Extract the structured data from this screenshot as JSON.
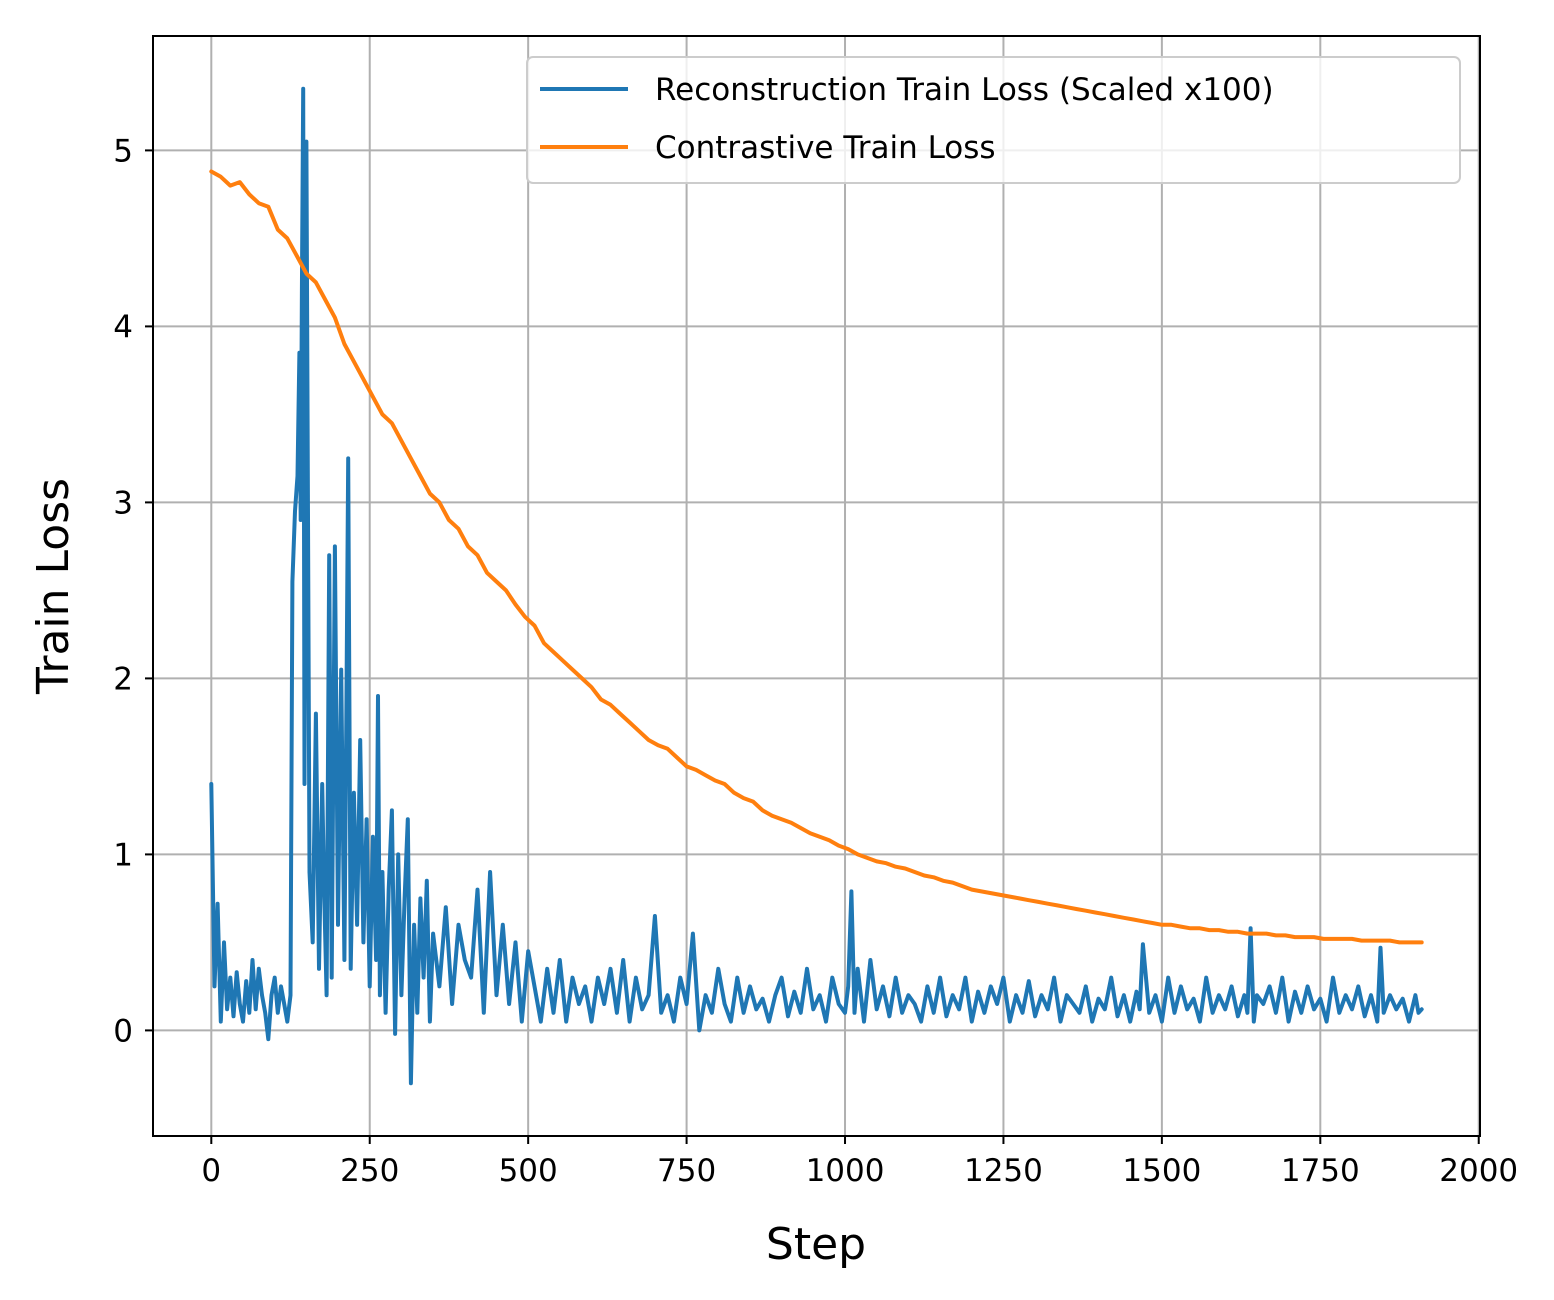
{
  "chart_data": {
    "type": "line",
    "title": "",
    "xlabel": "Step",
    "ylabel": "Train Loss",
    "xlim": [
      -92,
      2002
    ],
    "ylim": [
      -0.6,
      5.65
    ],
    "x_ticks": [
      0,
      250,
      500,
      750,
      1000,
      1250,
      1500,
      1750,
      2000
    ],
    "x_tick_labels": [
      "0",
      "250",
      "500",
      "750",
      "1000",
      "1250",
      "1500",
      "1750",
      "2000"
    ],
    "y_ticks": [
      0,
      1,
      2,
      3,
      4,
      5
    ],
    "y_tick_labels": [
      "0",
      "1",
      "2",
      "3",
      "4",
      "5"
    ],
    "grid": true,
    "legend_position": "top-right",
    "series": [
      {
        "name": "Reconstruction Train Loss (Scaled x100)",
        "color": "#1f77b4",
        "x": [
          0,
          5,
          10,
          15,
          20,
          25,
          30,
          35,
          40,
          45,
          50,
          55,
          60,
          65,
          70,
          75,
          80,
          85,
          90,
          95,
          100,
          105,
          110,
          115,
          120,
          125,
          128,
          132,
          136,
          139,
          141,
          143,
          145,
          147,
          150,
          155,
          160,
          165,
          170,
          175,
          178,
          182,
          186,
          190,
          195,
          200,
          205,
          210,
          213,
          216,
          220,
          225,
          230,
          235,
          240,
          245,
          250,
          255,
          260,
          263,
          266,
          270,
          275,
          280,
          285,
          290,
          295,
          300,
          305,
          310,
          315,
          320,
          325,
          330,
          335,
          340,
          345,
          350,
          360,
          370,
          380,
          390,
          400,
          410,
          420,
          430,
          440,
          450,
          460,
          470,
          480,
          490,
          500,
          510,
          520,
          530,
          540,
          550,
          560,
          570,
          580,
          590,
          600,
          610,
          620,
          630,
          640,
          650,
          660,
          670,
          680,
          690,
          700,
          710,
          720,
          730,
          740,
          750,
          760,
          770,
          780,
          790,
          800,
          810,
          820,
          830,
          840,
          850,
          860,
          870,
          880,
          890,
          900,
          910,
          920,
          930,
          940,
          950,
          960,
          970,
          980,
          990,
          1000,
          1005,
          1010,
          1015,
          1020,
          1030,
          1040,
          1050,
          1060,
          1070,
          1080,
          1090,
          1100,
          1110,
          1120,
          1130,
          1140,
          1150,
          1160,
          1170,
          1180,
          1190,
          1200,
          1210,
          1220,
          1230,
          1240,
          1250,
          1260,
          1270,
          1280,
          1290,
          1300,
          1310,
          1320,
          1330,
          1340,
          1350,
          1360,
          1370,
          1380,
          1390,
          1400,
          1410,
          1420,
          1430,
          1440,
          1450,
          1460,
          1465,
          1470,
          1480,
          1490,
          1500,
          1510,
          1520,
          1530,
          1540,
          1550,
          1560,
          1570,
          1580,
          1590,
          1600,
          1610,
          1620,
          1630,
          1635,
          1640,
          1645,
          1650,
          1660,
          1670,
          1680,
          1690,
          1700,
          1710,
          1720,
          1730,
          1740,
          1750,
          1760,
          1770,
          1780,
          1790,
          1800,
          1810,
          1820,
          1830,
          1840,
          1845,
          1850,
          1860,
          1870,
          1880,
          1890,
          1900,
          1905,
          1910
        ],
        "values": [
          1.4,
          0.25,
          0.72,
          0.05,
          0.5,
          0.12,
          0.3,
          0.08,
          0.33,
          0.15,
          0.05,
          0.28,
          0.1,
          0.4,
          0.12,
          0.35,
          0.2,
          0.1,
          -0.05,
          0.2,
          0.3,
          0.1,
          0.25,
          0.15,
          0.05,
          0.2,
          2.55,
          2.95,
          3.15,
          3.85,
          2.9,
          4.2,
          5.35,
          1.4,
          5.05,
          0.9,
          0.5,
          1.8,
          0.35,
          1.4,
          0.8,
          0.2,
          2.7,
          0.3,
          2.75,
          0.6,
          2.05,
          0.4,
          1.75,
          3.25,
          0.35,
          1.35,
          0.6,
          1.65,
          0.5,
          1.2,
          0.25,
          1.1,
          0.4,
          1.9,
          0.2,
          0.9,
          0.1,
          0.8,
          1.25,
          -0.02,
          1.0,
          0.2,
          0.75,
          1.2,
          -0.3,
          0.6,
          0.1,
          0.75,
          0.3,
          0.85,
          0.05,
          0.55,
          0.25,
          0.7,
          0.15,
          0.6,
          0.4,
          0.3,
          0.8,
          0.1,
          0.9,
          0.2,
          0.6,
          0.15,
          0.5,
          0.05,
          0.45,
          0.25,
          0.05,
          0.35,
          0.1,
          0.4,
          0.05,
          0.3,
          0.15,
          0.25,
          0.05,
          0.3,
          0.15,
          0.35,
          0.1,
          0.4,
          0.05,
          0.3,
          0.12,
          0.2,
          0.65,
          0.1,
          0.2,
          0.05,
          0.3,
          0.15,
          0.55,
          0.0,
          0.2,
          0.1,
          0.35,
          0.15,
          0.05,
          0.3,
          0.1,
          0.25,
          0.12,
          0.18,
          0.05,
          0.2,
          0.3,
          0.08,
          0.22,
          0.1,
          0.35,
          0.12,
          0.2,
          0.05,
          0.3,
          0.15,
          0.1,
          0.25,
          0.79,
          0.1,
          0.35,
          0.05,
          0.4,
          0.12,
          0.25,
          0.08,
          0.3,
          0.1,
          0.2,
          0.15,
          0.05,
          0.25,
          0.1,
          0.3,
          0.08,
          0.2,
          0.12,
          0.3,
          0.05,
          0.22,
          0.1,
          0.25,
          0.15,
          0.3,
          0.05,
          0.2,
          0.1,
          0.28,
          0.08,
          0.2,
          0.12,
          0.3,
          0.05,
          0.2,
          0.15,
          0.1,
          0.25,
          0.05,
          0.18,
          0.12,
          0.3,
          0.08,
          0.2,
          0.05,
          0.22,
          0.12,
          0.49,
          0.1,
          0.2,
          0.05,
          0.3,
          0.1,
          0.25,
          0.12,
          0.18,
          0.05,
          0.3,
          0.1,
          0.2,
          0.12,
          0.25,
          0.08,
          0.2,
          0.1,
          0.58,
          0.05,
          0.2,
          0.15,
          0.25,
          0.1,
          0.3,
          0.05,
          0.22,
          0.1,
          0.25,
          0.12,
          0.18,
          0.05,
          0.3,
          0.1,
          0.2,
          0.12,
          0.25,
          0.08,
          0.2,
          0.05,
          0.47,
          0.1,
          0.2,
          0.12,
          0.18,
          0.05,
          0.2,
          0.1,
          0.12
        ]
      },
      {
        "name": "Contrastive Train Loss",
        "color": "#ff7f0e",
        "x": [
          0,
          15,
          30,
          45,
          60,
          75,
          90,
          105,
          120,
          135,
          150,
          165,
          180,
          195,
          210,
          225,
          240,
          255,
          270,
          285,
          300,
          315,
          330,
          345,
          360,
          375,
          390,
          405,
          420,
          435,
          450,
          465,
          480,
          495,
          510,
          525,
          540,
          555,
          570,
          585,
          600,
          615,
          630,
          645,
          660,
          675,
          690,
          705,
          720,
          735,
          750,
          765,
          780,
          795,
          810,
          825,
          840,
          855,
          870,
          885,
          900,
          915,
          930,
          945,
          960,
          975,
          990,
          1005,
          1020,
          1035,
          1050,
          1065,
          1080,
          1095,
          1110,
          1125,
          1140,
          1155,
          1170,
          1185,
          1200,
          1215,
          1230,
          1245,
          1260,
          1275,
          1290,
          1305,
          1320,
          1335,
          1350,
          1365,
          1380,
          1395,
          1410,
          1425,
          1440,
          1455,
          1470,
          1485,
          1500,
          1515,
          1530,
          1545,
          1560,
          1575,
          1590,
          1605,
          1620,
          1635,
          1650,
          1665,
          1680,
          1695,
          1710,
          1725,
          1740,
          1755,
          1770,
          1785,
          1800,
          1815,
          1830,
          1845,
          1860,
          1875,
          1890,
          1905,
          1910
        ],
        "values": [
          4.88,
          4.85,
          4.8,
          4.82,
          4.75,
          4.7,
          4.68,
          4.55,
          4.5,
          4.4,
          4.3,
          4.25,
          4.15,
          4.05,
          3.9,
          3.8,
          3.7,
          3.6,
          3.5,
          3.45,
          3.35,
          3.25,
          3.15,
          3.05,
          3.0,
          2.9,
          2.85,
          2.75,
          2.7,
          2.6,
          2.55,
          2.5,
          2.42,
          2.35,
          2.3,
          2.2,
          2.15,
          2.1,
          2.05,
          2.0,
          1.95,
          1.88,
          1.85,
          1.8,
          1.75,
          1.7,
          1.65,
          1.62,
          1.6,
          1.55,
          1.5,
          1.48,
          1.45,
          1.42,
          1.4,
          1.35,
          1.32,
          1.3,
          1.25,
          1.22,
          1.2,
          1.18,
          1.15,
          1.12,
          1.1,
          1.08,
          1.05,
          1.03,
          1.0,
          0.98,
          0.96,
          0.95,
          0.93,
          0.92,
          0.9,
          0.88,
          0.87,
          0.85,
          0.84,
          0.82,
          0.8,
          0.79,
          0.78,
          0.77,
          0.76,
          0.75,
          0.74,
          0.73,
          0.72,
          0.71,
          0.7,
          0.69,
          0.68,
          0.67,
          0.66,
          0.65,
          0.64,
          0.63,
          0.62,
          0.61,
          0.6,
          0.6,
          0.59,
          0.58,
          0.58,
          0.57,
          0.57,
          0.56,
          0.56,
          0.55,
          0.55,
          0.55,
          0.54,
          0.54,
          0.53,
          0.53,
          0.53,
          0.52,
          0.52,
          0.52,
          0.52,
          0.51,
          0.51,
          0.51,
          0.51,
          0.5,
          0.5,
          0.5,
          0.5
        ]
      }
    ]
  }
}
